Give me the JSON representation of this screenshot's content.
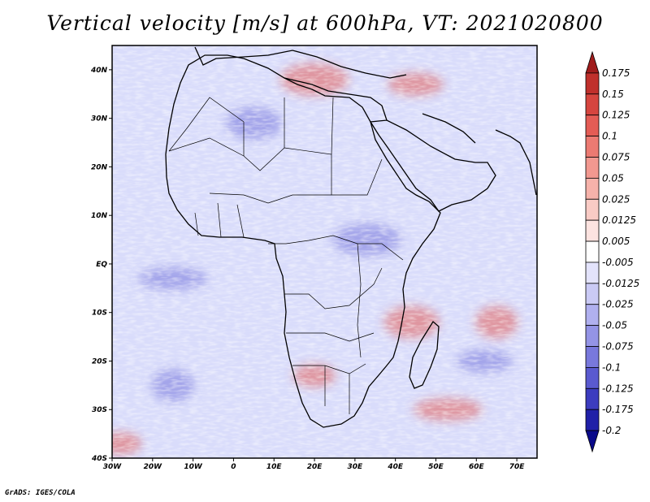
{
  "title": "Vertical velocity [m/s] at 600hPa, VT: 2021020800",
  "credit": "GrADS: IGES/COLA",
  "colors": {
    "frame": "#000000",
    "coast": "#000000",
    "background_field": "#d9dcfb"
  },
  "map": {
    "projection": "latlon",
    "lon_range": [
      -30,
      75
    ],
    "lat_range": [
      -40,
      45
    ],
    "lat_ticks": [
      {
        "value": 40,
        "label": "40N"
      },
      {
        "value": 30,
        "label": "30N"
      },
      {
        "value": 20,
        "label": "20N"
      },
      {
        "value": 10,
        "label": "10N"
      },
      {
        "value": 0,
        "label": "EQ"
      },
      {
        "value": -10,
        "label": "10S"
      },
      {
        "value": -20,
        "label": "20S"
      },
      {
        "value": -30,
        "label": "30S"
      },
      {
        "value": -40,
        "label": "40S"
      }
    ],
    "lon_ticks": [
      {
        "value": -30,
        "label": "30W"
      },
      {
        "value": -20,
        "label": "20W"
      },
      {
        "value": -10,
        "label": "10W"
      },
      {
        "value": 0,
        "label": "0"
      },
      {
        "value": 10,
        "label": "10E"
      },
      {
        "value": 20,
        "label": "20E"
      },
      {
        "value": 30,
        "label": "30E"
      },
      {
        "value": 40,
        "label": "40E"
      },
      {
        "value": 50,
        "label": "50E"
      },
      {
        "value": 60,
        "label": "60E"
      },
      {
        "value": 70,
        "label": "70E"
      }
    ]
  },
  "colorbar": {
    "levels": [
      "0.175",
      "0.15",
      "0.125",
      "0.1",
      "0.075",
      "0.05",
      "0.025",
      "0.0125",
      "0.005",
      "-0.005",
      "-0.0125",
      "-0.025",
      "-0.05",
      "-0.075",
      "-0.1",
      "-0.125",
      "-0.175",
      "-0.2"
    ],
    "colors": [
      "#a01c1c",
      "#c0302c",
      "#d6453f",
      "#e45c55",
      "#ec7a72",
      "#f29890",
      "#f6b2aa",
      "#f9cbc5",
      "#fce3e0",
      "#ffffff",
      "#e3e3fb",
      "#cacaf5",
      "#b0b0ef",
      "#9494e6",
      "#7878dc",
      "#5a5ad0",
      "#3c3cbf",
      "#2020a8",
      "#0a0a8a"
    ]
  },
  "field_features": [
    {
      "name": "ascent-south-africa",
      "lon": 20,
      "lat": -23,
      "sign": "positive"
    },
    {
      "name": "ascent-madagascar-ne",
      "lon": 44,
      "lat": -12,
      "sign": "positive"
    },
    {
      "name": "ascent-mozambique-channel-sw",
      "lon": 53,
      "lat": -30,
      "sign": "positive"
    },
    {
      "name": "ascent-indian-ocean",
      "lon": 65,
      "lat": -12,
      "sign": "positive"
    },
    {
      "name": "ascent-arabia-north",
      "lon": 45,
      "lat": 37,
      "sign": "positive"
    },
    {
      "name": "ascent-mediterranean",
      "lon": 20,
      "lat": 38,
      "sign": "positive"
    },
    {
      "name": "ascent-south-atlantic",
      "lon": -28,
      "lat": -37,
      "sign": "positive"
    },
    {
      "name": "descent-sahara",
      "lon": 5,
      "lat": 29,
      "sign": "negative"
    },
    {
      "name": "descent-atlantic-equator",
      "lon": -15,
      "lat": -3,
      "sign": "negative"
    },
    {
      "name": "descent-south-atlantic",
      "lon": -15,
      "lat": -25,
      "sign": "negative"
    },
    {
      "name": "descent-indian-ocean",
      "lon": 62,
      "lat": -20,
      "sign": "negative"
    },
    {
      "name": "descent-east-africa",
      "lon": 33,
      "lat": 5,
      "sign": "negative"
    }
  ]
}
